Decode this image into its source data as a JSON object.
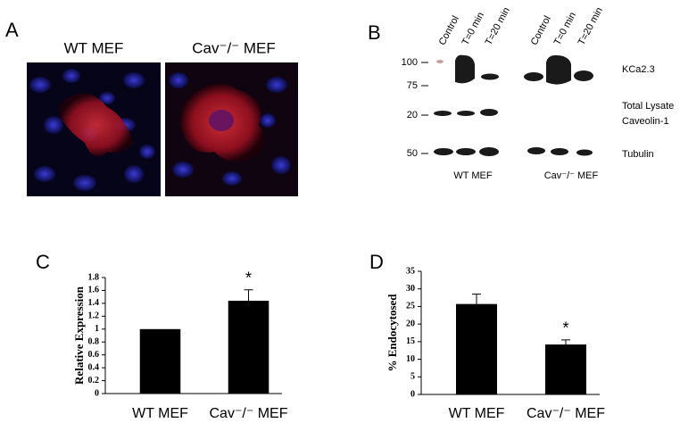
{
  "panels": {
    "a": {
      "label": "A",
      "captions": [
        "WT MEF",
        "Cav⁻/⁻ MEF"
      ]
    },
    "b": {
      "label": "B",
      "lanes": [
        "Control",
        "T=0 min",
        "T=20 min",
        "Control",
        "T=0 min",
        "T=20 min"
      ],
      "markers": [
        100,
        75,
        20,
        50
      ],
      "bands": [
        "KCa2.3",
        "Total Lysate",
        "Caveolin-1",
        "Tubulin"
      ],
      "groups": [
        "WT MEF",
        "Cav⁻/⁻ MEF"
      ]
    },
    "c": {
      "label": "C"
    },
    "d": {
      "label": "D"
    }
  },
  "chart_data": [
    {
      "type": "bar",
      "y_label": "Relative Expression",
      "categories": [
        "WT MEF",
        "Cav⁻/⁻ MEF"
      ],
      "values": [
        1.0,
        1.44
      ],
      "errors": [
        0,
        0.17
      ],
      "significance": [
        null,
        "*"
      ],
      "color": "#000000",
      "ylim": [
        0,
        1.8
      ],
      "yticks": [
        0,
        0.2,
        0.4,
        0.6,
        0.8,
        1,
        1.2,
        1.4,
        1.6,
        1.8
      ]
    },
    {
      "type": "bar",
      "y_label": "% Endocytosed",
      "categories": [
        "WT MEF",
        "Cav⁻/⁻ MEF"
      ],
      "values": [
        25.7,
        14.2
      ],
      "errors": [
        2.8,
        1.3
      ],
      "significance": [
        null,
        "*"
      ],
      "color": "#000000",
      "ylim": [
        0,
        35
      ],
      "yticks": [
        0,
        5,
        10,
        15,
        20,
        25,
        30,
        35
      ]
    }
  ]
}
